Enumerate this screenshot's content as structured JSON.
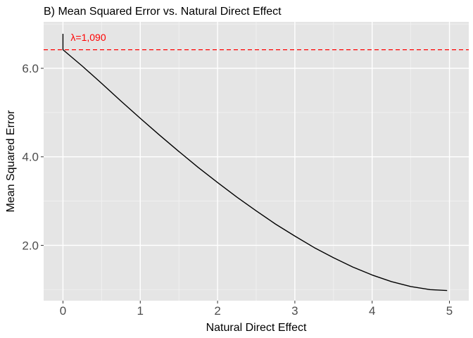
{
  "chart_data": {
    "type": "line",
    "title": "B) Mean Squared Error vs. Natural Direct Effect",
    "xlabel": "Natural Direct Effect",
    "ylabel": "Mean Squared Error",
    "xlim": [
      -0.25,
      5.25
    ],
    "ylim": [
      0.75,
      7.05
    ],
    "x_ticks": [
      0,
      1,
      2,
      3,
      4,
      5
    ],
    "x_tick_labels": [
      "0",
      "1",
      "2",
      "3",
      "4",
      "5"
    ],
    "y_ticks": [
      2.0,
      4.0,
      6.0
    ],
    "y_tick_labels": [
      "2.0",
      "4.0",
      "6.0"
    ],
    "grid": true,
    "series": [
      {
        "x": [
          0.0,
          0.0,
          0.25,
          0.5,
          0.75,
          1.0,
          1.25,
          1.5,
          1.75,
          2.0,
          2.25,
          2.5,
          2.75,
          3.0,
          3.25,
          3.5,
          3.75,
          4.0,
          4.25,
          4.5,
          4.75,
          4.97
        ],
        "y": [
          6.78,
          6.42,
          6.05,
          5.66,
          5.26,
          4.87,
          4.49,
          4.12,
          3.76,
          3.42,
          3.09,
          2.78,
          2.48,
          2.21,
          1.95,
          1.72,
          1.51,
          1.33,
          1.18,
          1.07,
          1.0,
          0.98
        ],
        "color": "#000000"
      }
    ],
    "reference_line": {
      "orientation": "horizontal",
      "y": 6.42,
      "style": "dashed",
      "color": "#ff0000"
    },
    "annotation": {
      "text": "λ=1,090",
      "x": 0.1,
      "y": 6.62,
      "color": "#ff0000"
    },
    "colors": {
      "panel": "#e5e5e5",
      "grid_major": "#ffffff",
      "grid_minor": "#f2f2f2"
    }
  }
}
